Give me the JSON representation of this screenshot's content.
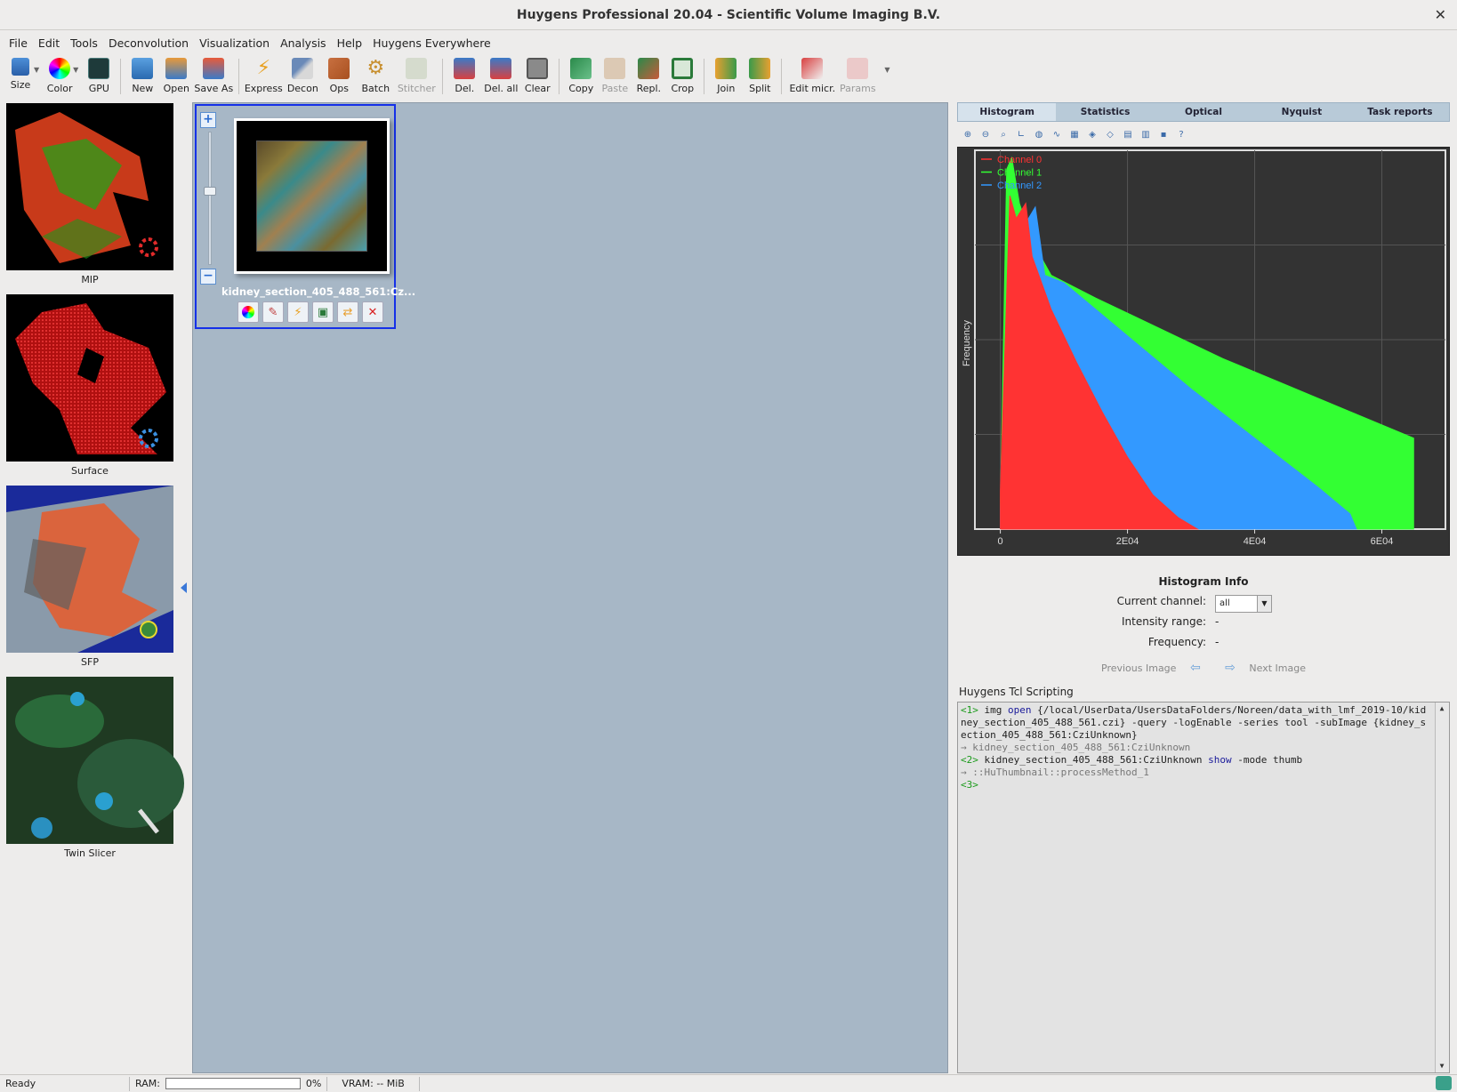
{
  "window": {
    "title": "Huygens Professional 20.04 - Scientific Volume Imaging B.V.",
    "close": "✕"
  },
  "menu": [
    "File",
    "Edit",
    "Tools",
    "Deconvolution",
    "Visualization",
    "Analysis",
    "Help",
    "Huygens Everywhere"
  ],
  "toolbar": {
    "size": "Size",
    "color": "Color",
    "gpu": "GPU",
    "new": "New",
    "open": "Open",
    "save_as": "Save As",
    "express": "Express",
    "decon": "Decon",
    "ops": "Ops",
    "batch": "Batch",
    "stitcher": "Stitcher",
    "del": "Del.",
    "del_all": "Del. all",
    "clear": "Clear",
    "copy": "Copy",
    "paste": "Paste",
    "repl": "Repl.",
    "crop": "Crop",
    "join": "Join",
    "split": "Split",
    "edit_micr": "Edit micr.",
    "params": "Params"
  },
  "viz_tools": [
    "MIP",
    "Surface",
    "SFP",
    "Twin Slicer"
  ],
  "image": {
    "name": "kidney_section_405_488_561:Cz..."
  },
  "tabs": [
    "Histogram",
    "Statistics",
    "Optical",
    "Nyquist",
    "Task reports"
  ],
  "chart_data": {
    "type": "area",
    "ylabel": "Frequency",
    "xlabel": "",
    "x_ticks": [
      "0",
      "2E04",
      "4E04",
      "6E04"
    ],
    "x_tick_values": [
      0,
      20000,
      40000,
      60000
    ],
    "xlim": [
      -4000,
      70000
    ],
    "legend_position": "top-left",
    "colors": {
      "Channel 0": "#ff3333",
      "Channel 1": "#33ff33",
      "Channel 2": "#3399ff"
    },
    "series": [
      {
        "name": "Channel 0",
        "x": [
          0,
          1500,
          2500,
          4000,
          5000,
          8000,
          12000,
          16000,
          20000,
          24000,
          28000,
          31000
        ],
        "y": [
          0.1,
          0.88,
          0.82,
          0.86,
          0.72,
          0.58,
          0.44,
          0.31,
          0.19,
          0.09,
          0.03,
          0.0
        ]
      },
      {
        "name": "Channel 1",
        "x": [
          0,
          1000,
          1800,
          3000,
          5000,
          8000,
          15000,
          25000,
          35000,
          45000,
          55000,
          65000
        ],
        "y": [
          0.05,
          0.95,
          0.98,
          0.86,
          0.76,
          0.67,
          0.61,
          0.53,
          0.45,
          0.38,
          0.31,
          0.24
        ]
      },
      {
        "name": "Channel 2",
        "x": [
          0,
          1200,
          3000,
          5500,
          7000,
          10000,
          15000,
          20000,
          30000,
          40000,
          50000,
          55000,
          56000
        ],
        "y": [
          0.05,
          0.5,
          0.78,
          0.85,
          0.67,
          0.65,
          0.58,
          0.51,
          0.37,
          0.24,
          0.11,
          0.04,
          0.0
        ]
      }
    ]
  },
  "histinfo": {
    "title": "Histogram Info",
    "current_channel_label": "Current channel:",
    "current_channel_value": "all",
    "intensity_label": "Intensity range:",
    "intensity_value": "-",
    "frequency_label": "Frequency:",
    "frequency_value": "-",
    "prev": "Previous Image",
    "next": "Next Image"
  },
  "tcl": {
    "label": "Huygens Tcl Scripting",
    "p1": "<1>",
    "c1a": " img ",
    "c1b": "open",
    "c1c": " {/local/UserData/UsersDataFolders/Noreen/data_with_lmf_2019-10/kidney_section_405_488_561.czi} -query -logEnable -series tool -subImage {kidney_section_405_488_561:CziUnknown}",
    "r1": "→ kidney_section_405_488_561:CziUnknown",
    "p2": "<2>",
    "c2a": " kidney_section_405_488_561:CziUnknown ",
    "c2b": "show",
    "c2c": " -mode thumb",
    "r2": "→ ::HuThumbnail::processMethod_1",
    "p3": "<3>"
  },
  "status": {
    "ready": "Ready",
    "ram_label": "RAM:",
    "ram_pct": "0%",
    "vram": "VRAM: -- MiB"
  }
}
